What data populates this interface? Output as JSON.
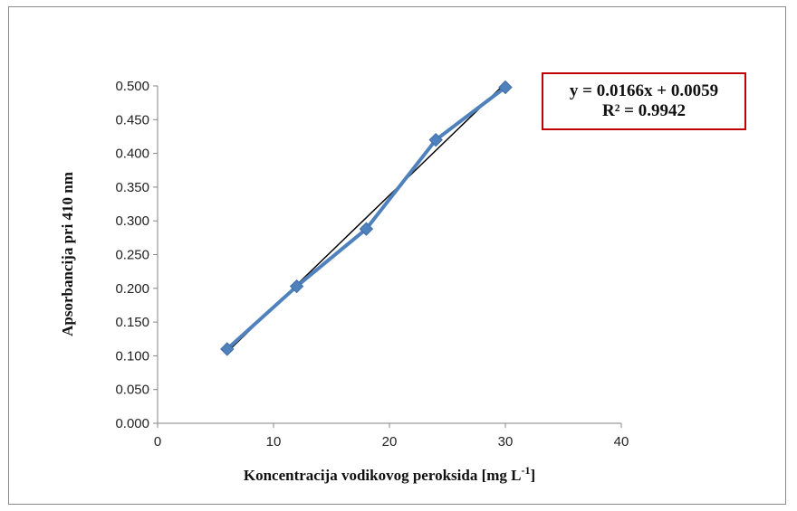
{
  "chart_data": {
    "type": "scatter",
    "xlabel": "Koncentracija vodikovog peroksida [mg L",
    "xlabel_sup": "-1",
    "xlabel_end": "]",
    "ylabel": "Apsorbancija pri 410 nm",
    "xlim": [
      0,
      40
    ],
    "ylim": [
      0,
      0.5
    ],
    "x_ticks": [
      "0",
      "10",
      "20",
      "30",
      "40"
    ],
    "y_ticks": [
      "0.000",
      "0.050",
      "0.100",
      "0.150",
      "0.200",
      "0.250",
      "0.300",
      "0.350",
      "0.400",
      "0.450",
      "0.500"
    ],
    "grid": false,
    "series": [
      {
        "x": [
          6,
          12,
          18,
          24,
          30
        ],
        "y": [
          0.11,
          0.203,
          0.288,
          0.42,
          0.498
        ],
        "color": "#4f81bd",
        "marker": "diamond",
        "connected": true
      }
    ],
    "trendline": {
      "slope": 0.0166,
      "intercept": 0.0059,
      "x_range": [
        6,
        30
      ],
      "color": "#000000",
      "equation": "y = 0.0166x + 0.0059",
      "r_squared": "R² = 0.9942",
      "box_color": "#c00000"
    }
  }
}
